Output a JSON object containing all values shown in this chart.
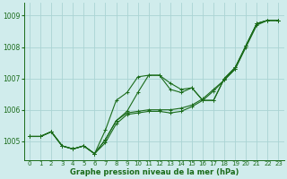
{
  "xlabel": "Graphe pression niveau de la mer (hPa)",
  "xlim": [
    -0.5,
    23.5
  ],
  "ylim": [
    1004.4,
    1009.4
  ],
  "yticks": [
    1005,
    1006,
    1007,
    1008,
    1009
  ],
  "ytick_labels": [
    "1005",
    "1006",
    "1007",
    "1008",
    "1009"
  ],
  "xticks": [
    0,
    1,
    2,
    3,
    4,
    5,
    6,
    7,
    8,
    9,
    10,
    11,
    12,
    13,
    14,
    15,
    16,
    17,
    18,
    19,
    20,
    21,
    22,
    23
  ],
  "xtick_labels": [
    "0",
    "1",
    "2",
    "3",
    "4",
    "5",
    "6",
    "7",
    "8",
    "9",
    "10",
    "11",
    "12",
    "13",
    "14",
    "15",
    "16",
    "17",
    "18",
    "19",
    "20",
    "21",
    "22",
    "23"
  ],
  "bg_color": "#d0ecec",
  "grid_color": "#aad4d4",
  "line_color": "#1a6b1a",
  "series": [
    [
      1005.15,
      1005.15,
      1005.3,
      1004.85,
      1004.75,
      1004.85,
      1004.6,
      1005.35,
      1006.3,
      1006.55,
      1007.05,
      1007.1,
      1007.1,
      1006.85,
      1006.65,
      1006.7,
      1006.3,
      1006.3,
      1007.0,
      1007.35,
      1008.05,
      1008.75,
      1008.85,
      1008.85
    ],
    [
      1005.15,
      1005.15,
      1005.3,
      1004.85,
      1004.75,
      1004.85,
      1004.6,
      1005.05,
      1005.65,
      1005.95,
      1006.55,
      1007.1,
      1007.1,
      1006.65,
      1006.55,
      1006.7,
      1006.3,
      1006.3,
      1007.0,
      1007.35,
      1008.05,
      1008.75,
      1008.85,
      1008.85
    ],
    [
      1005.15,
      1005.15,
      1005.3,
      1004.85,
      1004.75,
      1004.85,
      1004.6,
      1005.05,
      1005.65,
      1005.9,
      1005.95,
      1006.0,
      1006.0,
      1006.0,
      1006.05,
      1006.15,
      1006.35,
      1006.65,
      1006.95,
      1007.3,
      1008.05,
      1008.75,
      1008.85,
      1008.85
    ],
    [
      1005.15,
      1005.15,
      1005.3,
      1004.85,
      1004.75,
      1004.85,
      1004.6,
      1004.95,
      1005.55,
      1005.85,
      1005.9,
      1005.95,
      1005.95,
      1005.9,
      1005.95,
      1006.1,
      1006.3,
      1006.6,
      1006.95,
      1007.3,
      1008.0,
      1008.7,
      1008.85,
      1008.85
    ]
  ],
  "marker": "+",
  "markersize": 3,
  "linewidth": 0.8
}
